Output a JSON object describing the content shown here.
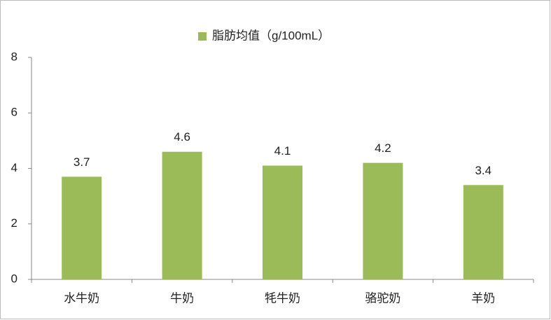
{
  "chart_data": {
    "type": "bar",
    "categories": [
      "水牛奶",
      "牛奶",
      "牦牛奶",
      "骆驼奶",
      "羊奶"
    ],
    "series": [
      {
        "name": "脂肪均值（g/100mL）",
        "color": "#9bbb59",
        "values": [
          3.7,
          4.6,
          4.1,
          4.2,
          3.4
        ]
      }
    ],
    "ylim": [
      0,
      8
    ],
    "yticks": [
      0,
      2,
      4,
      6,
      8
    ],
    "grid": false,
    "legend": "top"
  }
}
